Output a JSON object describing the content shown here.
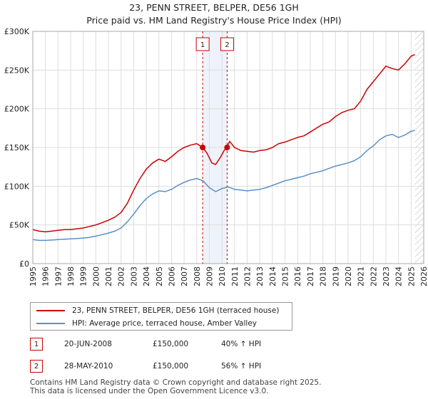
{
  "title_line1": "23, PENN STREET, BELPER, DE56 1GH",
  "title_line2": "Price paid vs. HM Land Registry's House Price Index (HPI)",
  "colors": {
    "property": "#cc0000",
    "hpi": "#5b8fc9",
    "marker": "#cc0000",
    "shade": "#eef2fa",
    "grid": "#dddddd"
  },
  "chart_data": {
    "type": "line",
    "title": "Price paid vs. HM Land Registry's House Price Index (HPI)",
    "xlabel": "",
    "ylabel": "",
    "xlim": [
      1995,
      2026
    ],
    "ylim": [
      0,
      300000
    ],
    "yticks": [
      0,
      50000,
      100000,
      150000,
      200000,
      250000,
      300000
    ],
    "ytick_labels": [
      "£0",
      "£50K",
      "£100K",
      "£150K",
      "£200K",
      "£250K",
      "£300K"
    ],
    "xticks": [
      1995,
      1996,
      1997,
      1998,
      1999,
      2000,
      2001,
      2002,
      2003,
      2004,
      2005,
      2006,
      2007,
      2008,
      2009,
      2010,
      2011,
      2012,
      2013,
      2014,
      2015,
      2016,
      2017,
      2018,
      2019,
      2020,
      2021,
      2022,
      2023,
      2024,
      2025,
      2026
    ],
    "series": [
      {
        "name": "23, PENN STREET, BELPER, DE56 1GH (terraced house)",
        "color": "#cc0000",
        "x": [
          1995.0,
          1995.5,
          1996.0,
          1996.5,
          1997.0,
          1997.5,
          1998.0,
          1998.5,
          1999.0,
          1999.5,
          2000.0,
          2000.5,
          2001.0,
          2001.5,
          2002.0,
          2002.5,
          2003.0,
          2003.5,
          2004.0,
          2004.5,
          2005.0,
          2005.5,
          2006.0,
          2006.5,
          2007.0,
          2007.5,
          2008.0,
          2008.47,
          2008.8,
          2009.2,
          2009.5,
          2009.9,
          2010.2,
          2010.41,
          2010.6,
          2011.0,
          2011.5,
          2012.0,
          2012.5,
          2013.0,
          2013.5,
          2014.0,
          2014.5,
          2015.0,
          2015.5,
          2016.0,
          2016.5,
          2017.0,
          2017.5,
          2018.0,
          2018.5,
          2019.0,
          2019.5,
          2020.0,
          2020.5,
          2021.0,
          2021.5,
          2022.0,
          2022.5,
          2023.0,
          2023.5,
          2024.0,
          2024.5,
          2025.0,
          2025.3
        ],
        "values": [
          44000,
          42000,
          41000,
          42000,
          43000,
          44000,
          44000,
          45000,
          46000,
          48000,
          50000,
          53000,
          56000,
          60000,
          66000,
          78000,
          95000,
          110000,
          122000,
          130000,
          135000,
          132000,
          138000,
          145000,
          150000,
          153000,
          155000,
          150000,
          143000,
          130000,
          128000,
          138000,
          147000,
          150000,
          158000,
          150000,
          146000,
          145000,
          144000,
          146000,
          147000,
          150000,
          155000,
          157000,
          160000,
          163000,
          165000,
          170000,
          175000,
          180000,
          183000,
          190000,
          195000,
          198000,
          200000,
          210000,
          225000,
          235000,
          245000,
          255000,
          252000,
          250000,
          258000,
          268000,
          270000
        ]
      },
      {
        "name": "HPI: Average price, terraced house, Amber Valley",
        "color": "#5b8fc9",
        "x": [
          1995.0,
          1995.5,
          1996.0,
          1996.5,
          1997.0,
          1997.5,
          1998.0,
          1998.5,
          1999.0,
          1999.5,
          2000.0,
          2000.5,
          2001.0,
          2001.5,
          2002.0,
          2002.5,
          2003.0,
          2003.5,
          2004.0,
          2004.5,
          2005.0,
          2005.5,
          2006.0,
          2006.5,
          2007.0,
          2007.5,
          2008.0,
          2008.5,
          2009.0,
          2009.5,
          2010.0,
          2010.5,
          2011.0,
          2011.5,
          2012.0,
          2012.5,
          2013.0,
          2013.5,
          2014.0,
          2014.5,
          2015.0,
          2015.5,
          2016.0,
          2016.5,
          2017.0,
          2017.5,
          2018.0,
          2018.5,
          2019.0,
          2019.5,
          2020.0,
          2020.5,
          2021.0,
          2021.5,
          2022.0,
          2022.5,
          2023.0,
          2023.5,
          2024.0,
          2024.5,
          2025.0,
          2025.3
        ],
        "values": [
          31000,
          30000,
          30000,
          30500,
          31000,
          31500,
          32000,
          32500,
          33000,
          34000,
          35500,
          37500,
          39500,
          42000,
          46000,
          54000,
          64000,
          75000,
          84000,
          90000,
          94000,
          93000,
          96000,
          101000,
          105000,
          108000,
          110000,
          107000,
          98000,
          93000,
          97000,
          99000,
          96000,
          95000,
          94000,
          95000,
          96000,
          98000,
          101000,
          104000,
          107000,
          109000,
          111000,
          113000,
          116000,
          118000,
          120000,
          123000,
          126000,
          128000,
          130000,
          133000,
          138000,
          146000,
          152000,
          160000,
          165000,
          167000,
          163000,
          166000,
          171000,
          172000
        ]
      }
    ],
    "shaded_span": [
      2008.47,
      2010.41
    ],
    "markers": [
      {
        "label": "1",
        "x": 2008.47,
        "value": 150000
      },
      {
        "label": "2",
        "x": 2010.41,
        "value": 150000
      }
    ]
  },
  "legend": {
    "property_label": "23, PENN STREET, BELPER, DE56 1GH (terraced house)",
    "hpi_label": "HPI: Average price, terraced house, Amber Valley"
  },
  "transactions": [
    {
      "num": "1",
      "date": "20-JUN-2008",
      "price": "£150,000",
      "hpi": "40% ↑ HPI"
    },
    {
      "num": "2",
      "date": "28-MAY-2010",
      "price": "£150,000",
      "hpi": "56% ↑ HPI"
    }
  ],
  "footer": {
    "line1": "Contains HM Land Registry data © Crown copyright and database right 2025.",
    "line2": "This data is licensed under the Open Government Licence v3.0."
  }
}
